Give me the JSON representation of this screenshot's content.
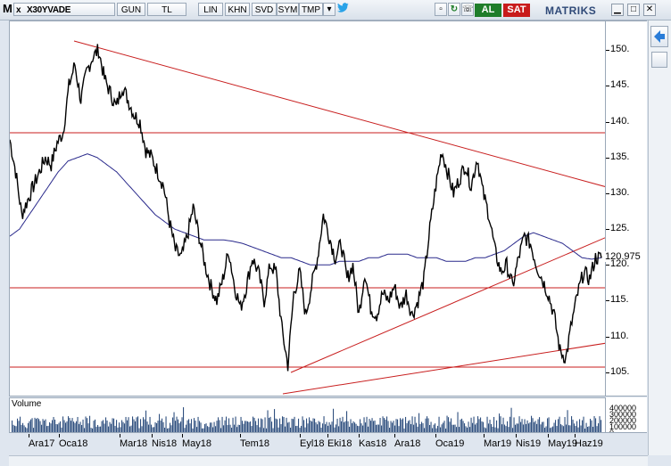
{
  "toolbar": {
    "menu_glyph": "M",
    "close_glyph": "x",
    "symbol": "X30YVADE",
    "period": "GUN",
    "currency": "TL",
    "scale": "LIN",
    "khn": "KHN",
    "svd": "SVD",
    "sym": "SYM",
    "tmp": "TMP",
    "buy_label": "AL",
    "sell_label": "SAT",
    "logo": "MATRIKS",
    "icons": [
      "dropdown-icon",
      "twitter-icon",
      "window-icon",
      "refresh-icon",
      "phone-icon"
    ],
    "window_controls": [
      "minimize",
      "maximize",
      "close"
    ]
  },
  "chart": {
    "last_price": "120.975",
    "volume_label": "Volume",
    "colors": {
      "price": "#000000",
      "moving_average": "#2a2a8c",
      "trend_lines": "#c81e1e",
      "volume": "#2f4f7f",
      "buy": "#1f7d2a",
      "sell": "#c81b1b"
    }
  },
  "chart_data": {
    "type": "line",
    "title": "",
    "xlabel": "",
    "ylabel": "",
    "x_ticks": [
      "Ara17",
      "Oca18",
      "Mar18",
      "Nis18",
      "May18",
      "Tem18",
      "Eyl18",
      "Eki18",
      "Kas18",
      "Ara18",
      "Oca19",
      "Mar19",
      "Nis19",
      "May19",
      "Haz19"
    ],
    "y_ticks": [
      105,
      110,
      115,
      120,
      125,
      130,
      135,
      140,
      145,
      150
    ],
    "ylim": [
      101.5,
      154
    ],
    "volume_ticks": [
      "400000",
      "300000",
      "200000",
      "100000",
      "0"
    ],
    "series": [
      {
        "values": [
          137.5,
          133,
          127,
          129,
          131,
          133,
          135,
          134,
          137,
          138.5,
          145,
          148,
          143,
          147,
          149,
          150,
          146,
          144,
          142,
          145,
          143,
          141,
          140,
          136,
          135,
          133,
          131,
          126,
          122,
          121,
          124,
          128,
          124,
          120,
          117,
          115,
          118,
          122,
          117,
          114,
          117,
          121,
          119,
          115,
          120,
          119,
          111,
          106,
          116,
          119,
          113,
          117,
          121,
          127,
          124,
          121,
          123,
          118,
          120,
          113,
          119,
          114,
          113,
          116,
          115,
          117,
          114,
          116,
          113,
          115,
          118,
          125,
          131,
          136,
          133,
          130,
          132,
          134,
          131,
          135,
          130,
          127,
          122,
          119,
          120,
          117,
          121,
          124,
          123,
          120,
          118,
          116,
          113,
          108,
          107,
          112,
          116,
          119,
          118,
          121,
          120.975
        ]
      },
      {
        "values": [
          124,
          125,
          127,
          129,
          131,
          133,
          134.5,
          135,
          135.5,
          135,
          134,
          133,
          131.5,
          130,
          128.5,
          127,
          126,
          125,
          124.5,
          124,
          123.5,
          123.5,
          123.5,
          123.3,
          123,
          122.5,
          122,
          121.5,
          121,
          121,
          120.5,
          120,
          120,
          120,
          120.5,
          120.5,
          120.5,
          121,
          121,
          121.5,
          121.5,
          121.5,
          121,
          121,
          121,
          120.5,
          120.5,
          120.5,
          121,
          121,
          121.5,
          122,
          123,
          124,
          124.5,
          124,
          123.5,
          123,
          122,
          121,
          120.8,
          121
        ]
      }
    ],
    "grid": false,
    "legend": "none"
  }
}
